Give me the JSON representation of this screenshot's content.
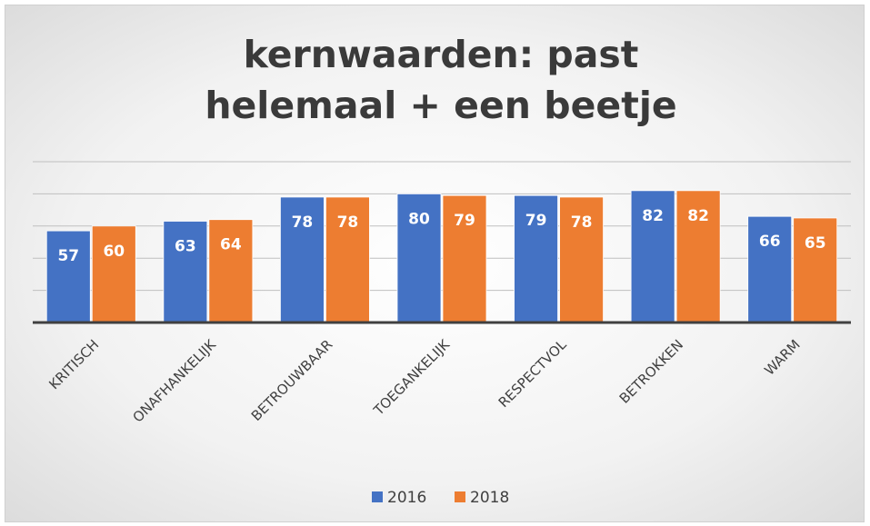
{
  "chart_data": {
    "type": "bar",
    "title": "kernwaarden: past helemaal + een beetje",
    "categories": [
      "KRITISCH",
      "ONAFHANKELIJK",
      "BETROUWBAAR",
      "TOEGANKELIJK",
      "RESPECTVOL",
      "BETROKKEN",
      "WARM"
    ],
    "series": [
      {
        "name": "2016",
        "color": "#4472c4",
        "values": [
          57,
          63,
          78,
          80,
          79,
          82,
          66
        ]
      },
      {
        "name": "2018",
        "color": "#ed7d31",
        "values": [
          60,
          64,
          78,
          79,
          78,
          82,
          65
        ]
      }
    ],
    "ylim": [
      0,
      100
    ],
    "yticks": [
      0,
      20,
      40,
      60,
      80,
      100
    ],
    "grid": true,
    "legend": "bottom"
  }
}
